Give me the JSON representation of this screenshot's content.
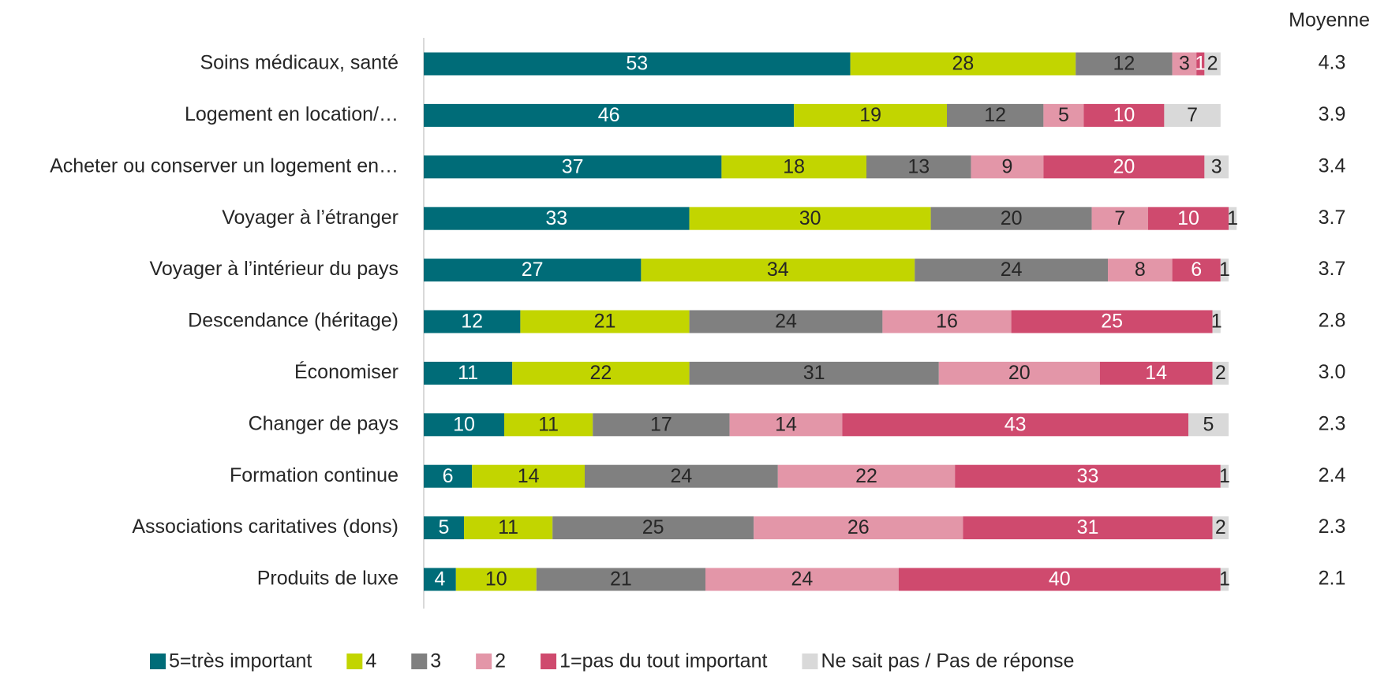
{
  "chart_data": {
    "type": "stacked-bar-horizontal",
    "categories": [
      "Soins médicaux, santé",
      "Logement en location/…",
      "Acheter ou conserver un logement en…",
      "Voyager à l’étranger",
      "Voyager à l’intérieur du pays",
      "Descendance (héritage)",
      "Économiser",
      "Changer de pays",
      "Formation continue",
      "Associations caritatives (dons)",
      "Produits de luxe"
    ],
    "series": [
      {
        "name": "5=très important",
        "color": "#006c78",
        "label_color": "#ffffff",
        "values": [
          53,
          46,
          37,
          33,
          27,
          12,
          11,
          10,
          6,
          5,
          4
        ]
      },
      {
        "name": "4",
        "color": "#c2d500",
        "label_color": "#262626",
        "values": [
          28,
          19,
          18,
          30,
          34,
          21,
          22,
          11,
          14,
          11,
          10
        ]
      },
      {
        "name": "3",
        "color": "#808080",
        "label_color": "#262626",
        "values": [
          12,
          12,
          13,
          20,
          24,
          24,
          31,
          17,
          24,
          25,
          21
        ]
      },
      {
        "name": "2",
        "color": "#e396a8",
        "label_color": "#262626",
        "values": [
          3,
          5,
          9,
          7,
          8,
          16,
          20,
          14,
          22,
          26,
          24
        ]
      },
      {
        "name": "1=pas du tout important",
        "color": "#cf4a6e",
        "label_color": "#ffffff",
        "values": [
          1,
          10,
          20,
          10,
          6,
          25,
          14,
          43,
          33,
          31,
          40
        ]
      },
      {
        "name": "Ne sait pas / Pas de réponse",
        "color": "#d9d9d9",
        "label_color": "#262626",
        "values": [
          2,
          7,
          3,
          1,
          1,
          1,
          2,
          5,
          1,
          2,
          1
        ]
      }
    ],
    "means": {
      "title": "Moyenne",
      "values": [
        4.3,
        3.9,
        3.4,
        3.7,
        3.7,
        2.8,
        3.0,
        2.3,
        2.4,
        2.3,
        2.1
      ],
      "value_labels": [
        "4.3",
        "3.9",
        "3.4",
        "3.7",
        "3.7",
        "2.8",
        "3.0",
        "2.3",
        "2.4",
        "2.3",
        "2.1"
      ]
    }
  }
}
